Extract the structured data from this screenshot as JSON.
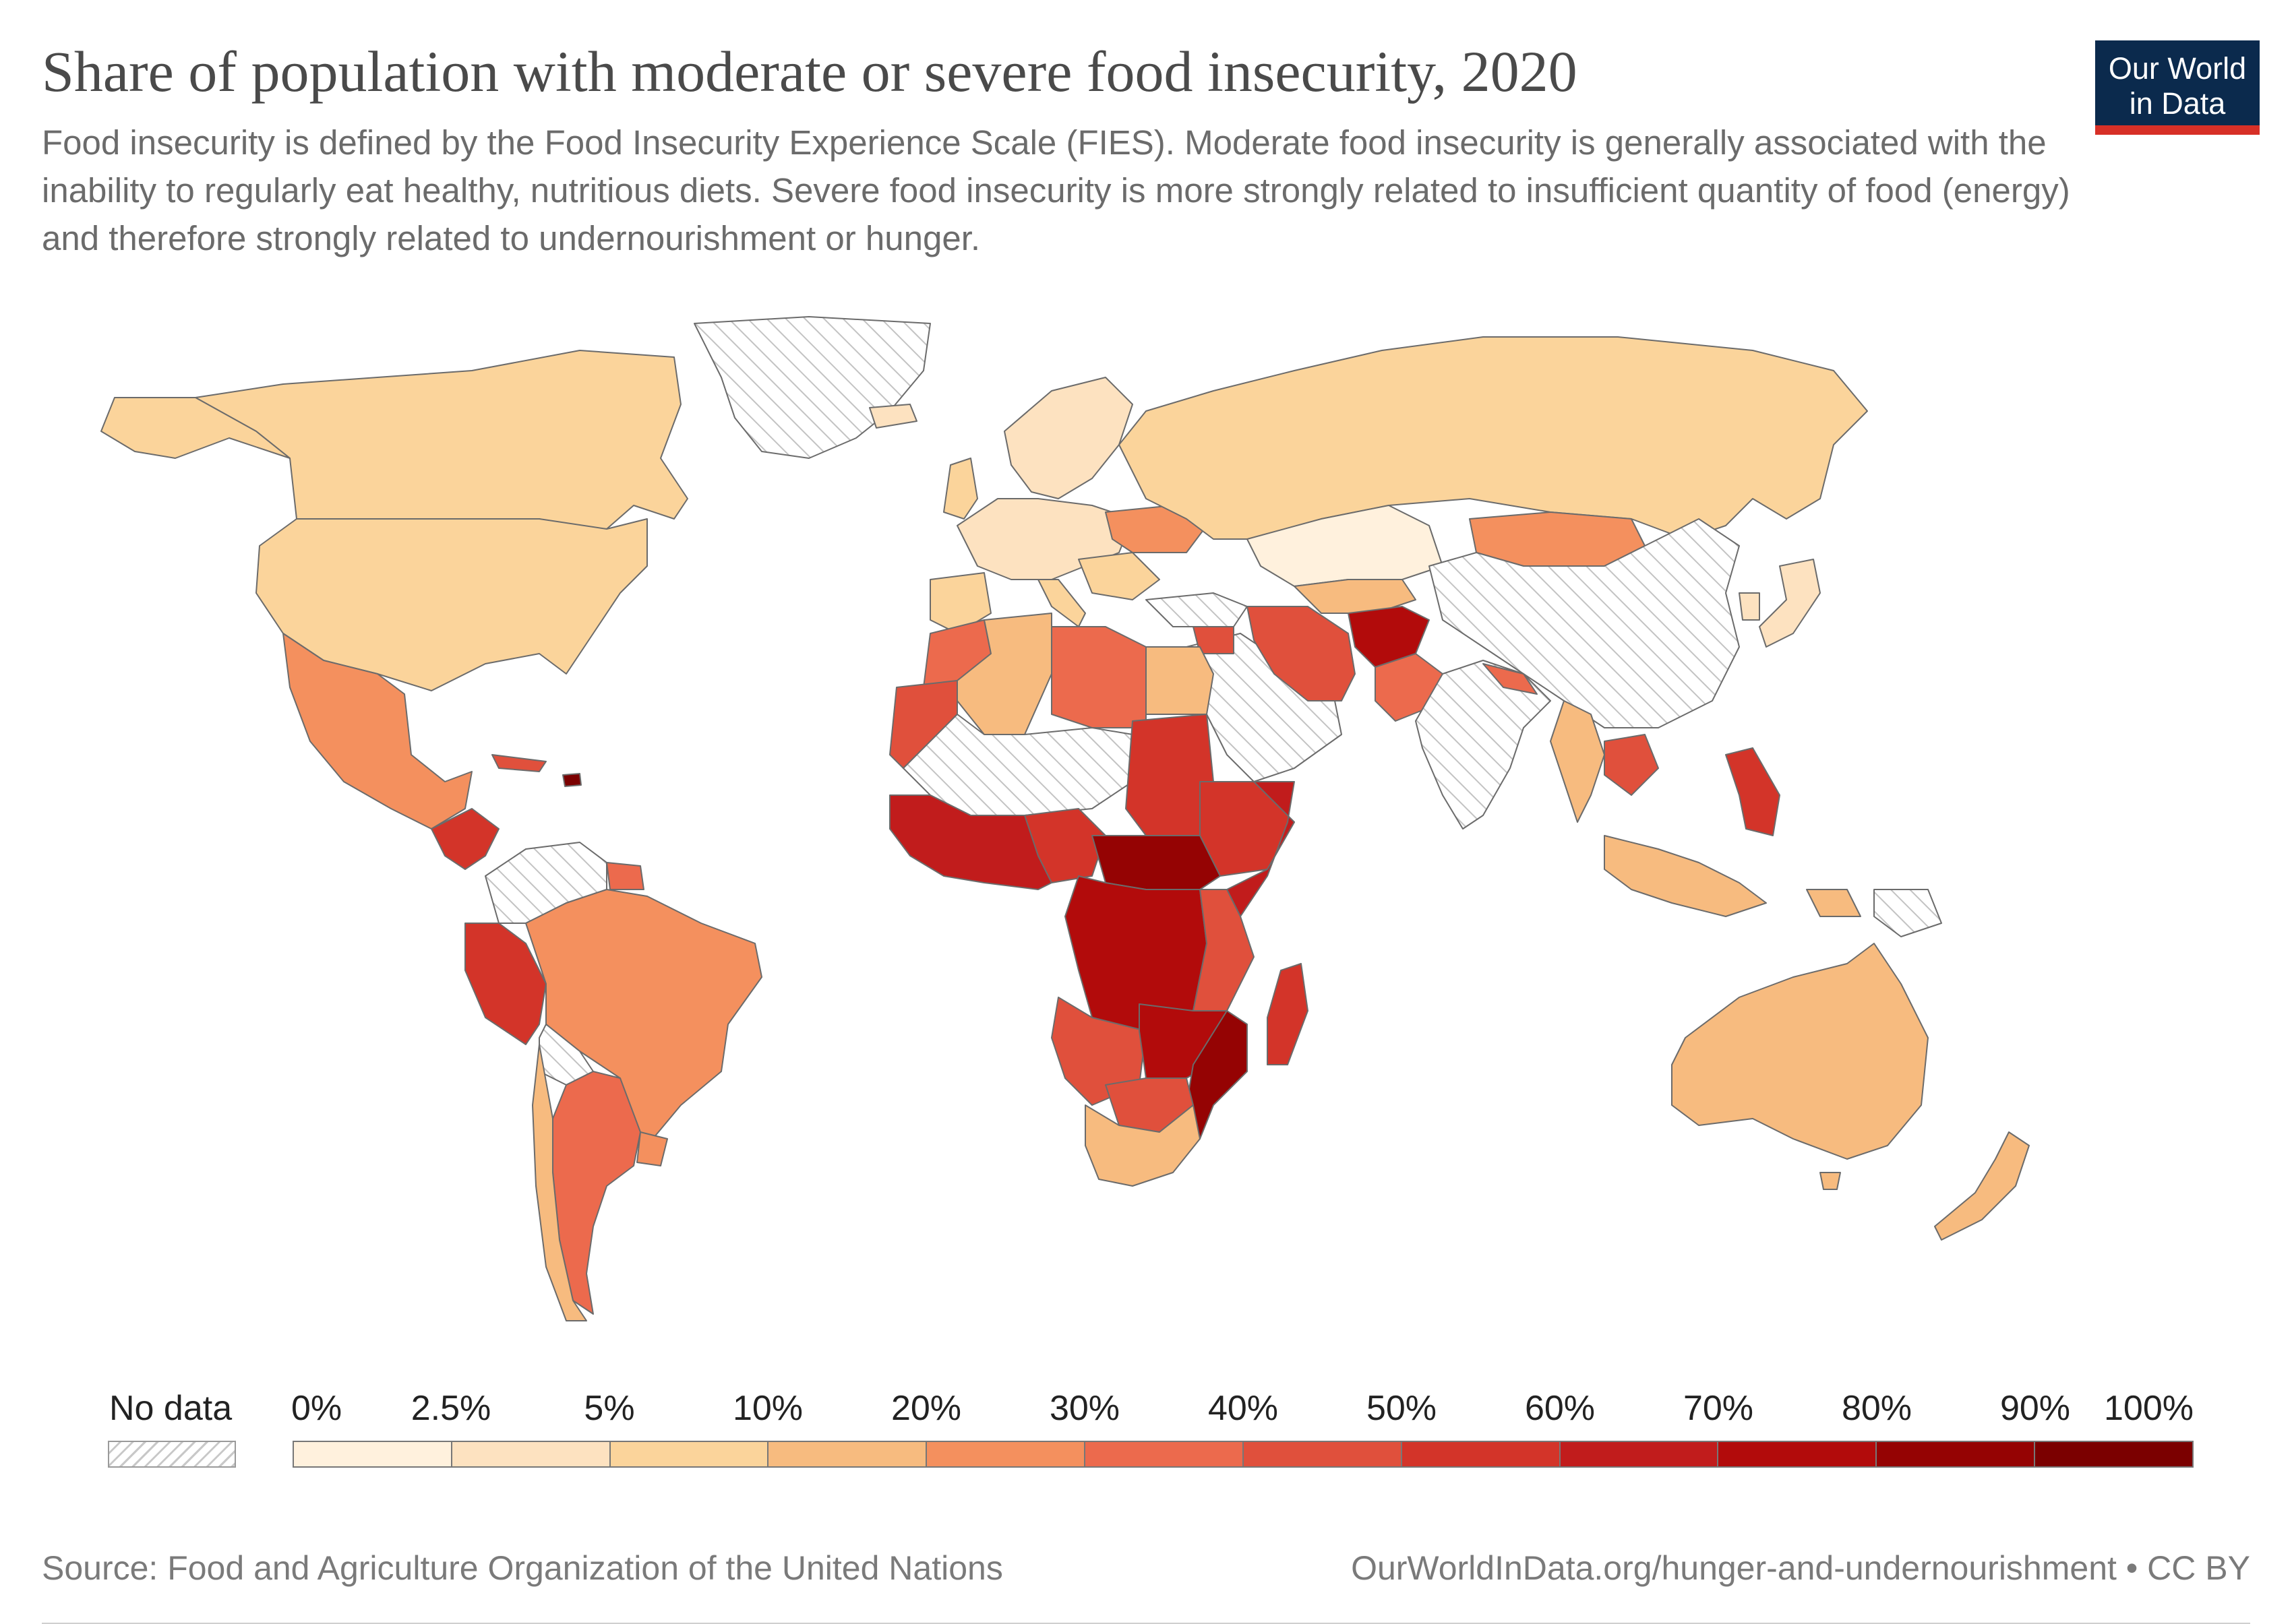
{
  "header": {
    "title": "Share of population with moderate or severe food insecurity, 2020",
    "subtitle": "Food insecurity is defined by the Food Insecurity Experience Scale (FIES). Moderate food insecurity is generally associated with the inability to regularly eat healthy, nutritious diets. Severe food insecurity is more strongly related to insufficient quantity of food (energy) and therefore strongly related to undernourishment or hunger.",
    "logo_line1": "Our World",
    "logo_line2": "in Data"
  },
  "legend": {
    "no_data_label": "No data",
    "tick_labels": [
      "0%",
      "2.5%",
      "5%",
      "10%",
      "20%",
      "30%",
      "40%",
      "50%",
      "60%",
      "70%",
      "80%",
      "90%",
      "100%"
    ],
    "colors": [
      "#fff1dd",
      "#fde2c0",
      "#fbd49b",
      "#f7bb7f",
      "#f4905e",
      "#ec6a4d",
      "#e0503c",
      "#d33429",
      "#c11c1c",
      "#b20b0b",
      "#950303",
      "#7b0000"
    ]
  },
  "footer": {
    "source": "Source: Food and Agriculture Organization of the United Nations",
    "url": "OurWorldInData.org/hunger-and-undernourishment • CC BY"
  },
  "colors": {
    "no_data": "#e8e8e8",
    "border": "#6b6b6b",
    "ocean": "#ffffff"
  }
}
